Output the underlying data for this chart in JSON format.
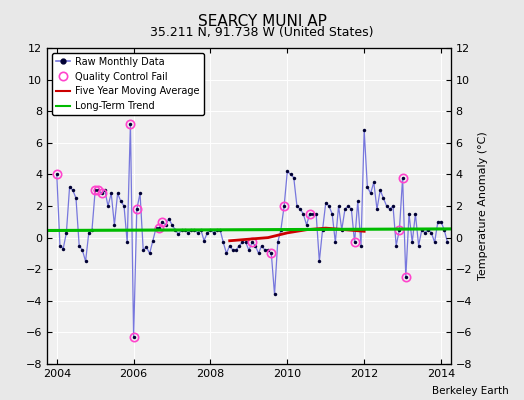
{
  "title": "SEARCY MUNI AP",
  "subtitle": "35.211 N, 91.738 W (United States)",
  "ylabel": "Temperature Anomaly (°C)",
  "attribution": "Berkeley Earth",
  "ylim": [
    -8,
    12
  ],
  "xlim": [
    2003.75,
    2014.25
  ],
  "yticks": [
    -8,
    -6,
    -4,
    -2,
    0,
    2,
    4,
    6,
    8,
    10,
    12
  ],
  "xticks": [
    2004,
    2006,
    2008,
    2010,
    2012,
    2014
  ],
  "background_color": "#e8e8e8",
  "plot_bg_color": "#f0f0f0",
  "raw_data": {
    "x": [
      2004.0,
      2004.083,
      2004.167,
      2004.25,
      2004.333,
      2004.417,
      2004.5,
      2004.583,
      2004.667,
      2004.75,
      2004.833,
      2004.917,
      2005.0,
      2005.083,
      2005.167,
      2005.25,
      2005.333,
      2005.417,
      2005.5,
      2005.583,
      2005.667,
      2005.75,
      2005.833,
      2005.917,
      2006.0,
      2006.083,
      2006.167,
      2006.25,
      2006.333,
      2006.417,
      2006.5,
      2006.583,
      2006.667,
      2006.75,
      2006.833,
      2006.917,
      2007.0,
      2007.083,
      2007.167,
      2007.25,
      2007.333,
      2007.417,
      2007.5,
      2007.583,
      2007.667,
      2007.75,
      2007.833,
      2007.917,
      2008.0,
      2008.083,
      2008.167,
      2008.25,
      2008.333,
      2008.417,
      2008.5,
      2008.583,
      2008.667,
      2008.75,
      2008.833,
      2008.917,
      2009.0,
      2009.083,
      2009.167,
      2009.25,
      2009.333,
      2009.417,
      2009.5,
      2009.583,
      2009.667,
      2009.75,
      2009.833,
      2009.917,
      2010.0,
      2010.083,
      2010.167,
      2010.25,
      2010.333,
      2010.417,
      2010.5,
      2010.583,
      2010.667,
      2010.75,
      2010.833,
      2010.917,
      2011.0,
      2011.083,
      2011.167,
      2011.25,
      2011.333,
      2011.417,
      2011.5,
      2011.583,
      2011.667,
      2011.75,
      2011.833,
      2011.917,
      2012.0,
      2012.083,
      2012.167,
      2012.25,
      2012.333,
      2012.417,
      2012.5,
      2012.583,
      2012.667,
      2012.75,
      2012.833,
      2012.917,
      2013.0,
      2013.083,
      2013.167,
      2013.25,
      2013.333,
      2013.417,
      2013.5,
      2013.583,
      2013.667,
      2013.75,
      2013.833,
      2013.917,
      2014.0,
      2014.083,
      2014.167
    ],
    "y": [
      4.0,
      -0.5,
      -0.7,
      0.3,
      3.2,
      3.0,
      2.5,
      -0.5,
      -0.8,
      -1.5,
      0.3,
      0.5,
      3.0,
      3.0,
      2.8,
      3.0,
      2.0,
      2.8,
      0.8,
      2.8,
      2.3,
      2.0,
      -0.3,
      7.2,
      -6.3,
      1.8,
      2.8,
      -0.8,
      -0.6,
      -1.0,
      -0.2,
      0.6,
      0.6,
      1.0,
      0.8,
      1.2,
      0.8,
      0.5,
      0.2,
      0.5,
      0.5,
      0.3,
      0.5,
      0.5,
      0.3,
      0.5,
      -0.2,
      0.3,
      0.5,
      0.3,
      0.5,
      0.5,
      -0.3,
      -1.0,
      -0.5,
      -0.8,
      -0.8,
      -0.5,
      -0.3,
      -0.3,
      -0.8,
      -0.3,
      -0.5,
      -1.0,
      -0.5,
      -0.8,
      -0.8,
      -1.0,
      -3.6,
      -0.3,
      0.5,
      2.0,
      4.2,
      4.0,
      3.8,
      2.0,
      1.8,
      1.5,
      0.8,
      1.5,
      1.5,
      1.5,
      -1.5,
      0.5,
      2.2,
      2.0,
      1.5,
      -0.3,
      2.0,
      0.5,
      1.8,
      2.0,
      1.8,
      -0.3,
      2.3,
      -0.5,
      6.8,
      3.2,
      2.8,
      3.5,
      1.8,
      3.0,
      2.5,
      2.0,
      1.8,
      2.0,
      -0.5,
      0.5,
      3.8,
      -2.5,
      1.5,
      -0.3,
      1.5,
      -0.5,
      0.5,
      0.3,
      0.5,
      0.3,
      -0.3,
      1.0,
      1.0,
      0.5,
      -0.3
    ]
  },
  "qc_fail_indices": [
    0,
    12,
    13,
    14,
    23,
    24,
    25,
    32,
    33,
    61,
    67,
    71,
    79,
    93,
    107,
    108,
    109
  ],
  "moving_avg": {
    "x": [
      2008.5,
      2009.0,
      2009.5,
      2010.0,
      2010.5,
      2011.0,
      2011.5,
      2012.0
    ],
    "y": [
      -0.2,
      -0.1,
      0.0,
      0.3,
      0.5,
      0.6,
      0.5,
      0.4
    ]
  },
  "trend_x": [
    2003.75,
    2014.25
  ],
  "trend_y": [
    0.45,
    0.55
  ],
  "line_color": "#7777dd",
  "marker_color": "#000033",
  "qc_color": "#ff44cc",
  "moving_avg_color": "#cc0000",
  "trend_color": "#00bb00",
  "title_fontsize": 11,
  "subtitle_fontsize": 9,
  "tick_fontsize": 8,
  "ylabel_fontsize": 8
}
